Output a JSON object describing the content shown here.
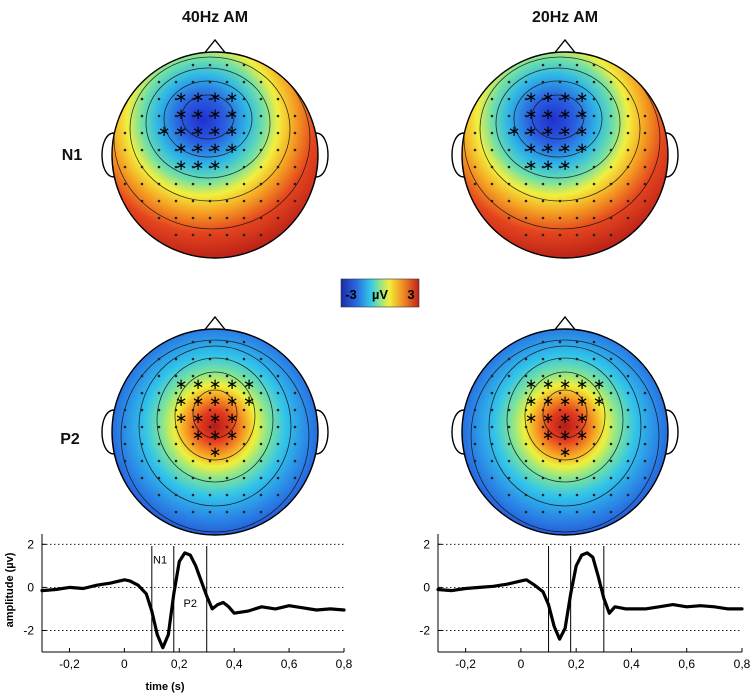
{
  "chart_data": [
    {
      "type": "topoplot",
      "panel": "topoplots",
      "column_titles": [
        "40Hz AM",
        "20Hz AM"
      ],
      "row_labels": [
        "N1",
        "P2"
      ],
      "maps": [
        {
          "row": "N1",
          "column": "40Hz AM",
          "polarity": "negative-frontocentral"
        },
        {
          "row": "N1",
          "column": "20Hz AM",
          "polarity": "negative-frontocentral"
        },
        {
          "row": "P2",
          "column": "40Hz AM",
          "polarity": "positive-central"
        },
        {
          "row": "P2",
          "column": "20Hz AM",
          "polarity": "positive-central"
        }
      ],
      "colorbar": {
        "min_label": "-3",
        "unit": "µV",
        "max_label": "3",
        "range": [
          -3,
          3
        ]
      }
    },
    {
      "type": "line",
      "condition": "40Hz AM",
      "xlabel": "time (s)",
      "ylabel": "amplitude (µv)",
      "xlim": [
        -0.3,
        0.8
      ],
      "ylim": [
        -3,
        2.2
      ],
      "xticks": [
        -0.2,
        0,
        0.2,
        0.4,
        0.6,
        0.8
      ],
      "xtick_labels": [
        "-0,2",
        "0",
        "0,2",
        "0,4",
        "0,6",
        "0,8"
      ],
      "yticks": [
        2,
        0,
        -2
      ],
      "ytick_labels": [
        "2",
        "0",
        "-2"
      ],
      "reference_lines_y": [
        2,
        0,
        -2
      ],
      "window_lines_x": [
        0.1,
        0.18,
        0.3
      ],
      "annotations": [
        {
          "text": "N1",
          "x": 0.13,
          "y": 1.1
        },
        {
          "text": "P2",
          "x": 0.24,
          "y": -0.9
        }
      ],
      "series": [
        {
          "name": "ERP",
          "x": [
            -0.3,
            -0.25,
            -0.2,
            -0.15,
            -0.1,
            -0.05,
            0,
            0.02,
            0.05,
            0.08,
            0.1,
            0.12,
            0.14,
            0.16,
            0.18,
            0.2,
            0.22,
            0.24,
            0.26,
            0.28,
            0.3,
            0.32,
            0.34,
            0.36,
            0.38,
            0.4,
            0.45,
            0.5,
            0.55,
            0.6,
            0.65,
            0.7,
            0.75,
            0.8
          ],
          "y": [
            -0.15,
            -0.1,
            0,
            -0.05,
            0.1,
            0.2,
            0.35,
            0.3,
            0.1,
            -0.3,
            -1.1,
            -2.2,
            -2.8,
            -2.2,
            -0.3,
            1.2,
            1.6,
            1.5,
            1.0,
            0.3,
            -0.4,
            -1.0,
            -0.8,
            -0.7,
            -0.9,
            -1.2,
            -1.1,
            -0.9,
            -1.0,
            -0.85,
            -0.95,
            -1.05,
            -1.0,
            -1.05
          ]
        }
      ]
    },
    {
      "type": "line",
      "condition": "20Hz AM",
      "xlabel": "",
      "ylabel": "",
      "xlim": [
        -0.3,
        0.8
      ],
      "ylim": [
        -3,
        2.2
      ],
      "xticks": [
        -0.2,
        0,
        0.2,
        0.4,
        0.6,
        0.8
      ],
      "xtick_labels": [
        "-0,2",
        "0",
        "0,2",
        "0,4",
        "0,6",
        "0,8"
      ],
      "yticks": [
        2,
        0,
        -2
      ],
      "ytick_labels": [
        "2",
        "0",
        "-2"
      ],
      "reference_lines_y": [
        2,
        0,
        -2
      ],
      "window_lines_x": [
        0.1,
        0.18,
        0.3
      ],
      "annotations": [],
      "series": [
        {
          "name": "ERP",
          "x": [
            -0.3,
            -0.25,
            -0.2,
            -0.15,
            -0.1,
            -0.05,
            0,
            0.02,
            0.05,
            0.08,
            0.1,
            0.12,
            0.14,
            0.16,
            0.18,
            0.2,
            0.22,
            0.24,
            0.26,
            0.28,
            0.3,
            0.32,
            0.34,
            0.36,
            0.38,
            0.4,
            0.45,
            0.5,
            0.55,
            0.6,
            0.65,
            0.7,
            0.75,
            0.8
          ],
          "y": [
            -0.1,
            -0.15,
            -0.05,
            0,
            0.05,
            0.15,
            0.3,
            0.35,
            0.1,
            -0.2,
            -0.8,
            -1.8,
            -2.4,
            -1.9,
            -0.3,
            1.0,
            1.5,
            1.6,
            1.4,
            0.5,
            -0.5,
            -1.2,
            -0.9,
            -0.95,
            -1.0,
            -1.0,
            -1.0,
            -0.9,
            -0.8,
            -0.9,
            -0.85,
            -0.9,
            -1.0,
            -1.0
          ]
        }
      ]
    }
  ]
}
